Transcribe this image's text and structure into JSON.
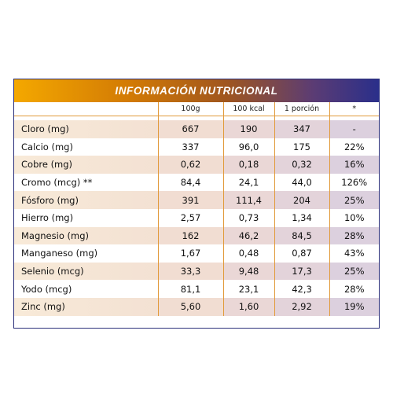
{
  "title": "INFORMACIÓN NUTRICIONAL",
  "columns": [
    "",
    "100g",
    "100 kcal",
    "1 porción",
    "*"
  ],
  "rows": [
    {
      "name": "Cloro (mg)",
      "v100g": "667",
      "v100kcal": "190",
      "porcion": "347",
      "pct": "-"
    },
    {
      "name": "Calcio (mg)",
      "v100g": "337",
      "v100kcal": "96,0",
      "porcion": "175",
      "pct": "22%"
    },
    {
      "name": "Cobre (mg)",
      "v100g": "0,62",
      "v100kcal": "0,18",
      "porcion": "0,32",
      "pct": "16%"
    },
    {
      "name": "Cromo (mcg) **",
      "v100g": "84,4",
      "v100kcal": "24,1",
      "porcion": "44,0",
      "pct": "126%"
    },
    {
      "name": "Fósforo (mg)",
      "v100g": "391",
      "v100kcal": "111,4",
      "porcion": "204",
      "pct": "25%"
    },
    {
      "name": "Hierro (mg)",
      "v100g": "2,57",
      "v100kcal": "0,73",
      "porcion": "1,34",
      "pct": "10%"
    },
    {
      "name": "Magnesio (mg)",
      "v100g": "162",
      "v100kcal": "46,2",
      "porcion": "84,5",
      "pct": "28%"
    },
    {
      "name": "Manganeso (mg)",
      "v100g": "1,67",
      "v100kcal": "0,48",
      "porcion": "0,87",
      "pct": "43%"
    },
    {
      "name": "Selenio (mcg)",
      "v100g": "33,3",
      "v100kcal": "9,48",
      "porcion": "17,3",
      "pct": "25%"
    },
    {
      "name": "Yodo (mcg)",
      "v100g": "81,1",
      "v100kcal": "23,1",
      "porcion": "42,3",
      "pct": "28%"
    },
    {
      "name": "Zinc (mg)",
      "v100g": "5,60",
      "v100kcal": "1,60",
      "porcion": "2,92",
      "pct": "19%"
    }
  ],
  "colors": {
    "header_gradient_start": "#f4a800",
    "header_gradient_end": "#2a2f8a",
    "grid_line": "#e19a3a",
    "stripe": "#f1ddd2"
  }
}
